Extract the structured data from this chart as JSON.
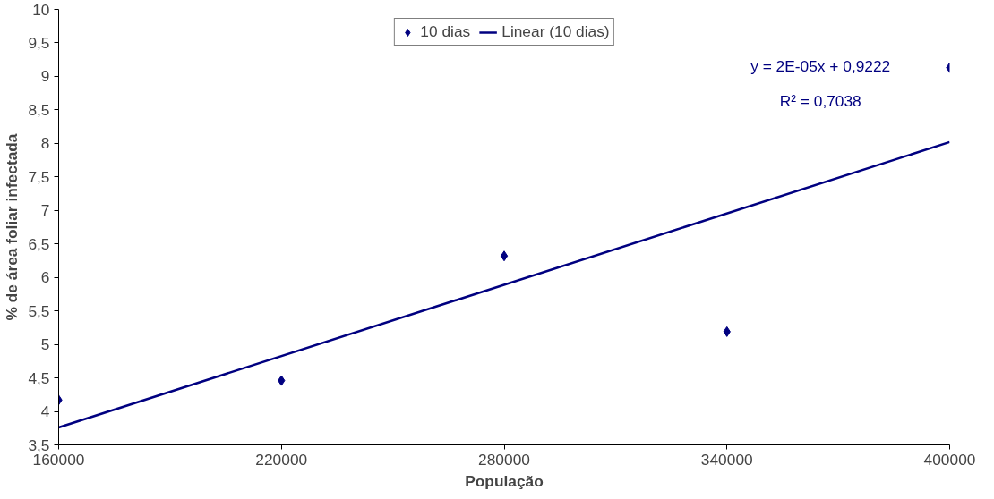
{
  "chart_data": {
    "type": "scatter",
    "xlabel": "População",
    "ylabel": "% de área foliar infectada",
    "x": [
      160000,
      220000,
      280000,
      340000,
      400000
    ],
    "series": [
      {
        "name": "10 dias",
        "color": "#000080",
        "marker": "diamond",
        "values": [
          4.17,
          4.46,
          6.32,
          5.19,
          9.13
        ]
      },
      {
        "name": "Linear (10 dias)",
        "type": "line",
        "color": "#000080",
        "x": [
          160000,
          400000
        ],
        "values": [
          3.76,
          8.02
        ]
      }
    ],
    "annotations": [
      "y = 2E-05x + 0,9222",
      "R² = 0,7038"
    ],
    "xlim": [
      160000,
      400000
    ],
    "xticks": [
      160000,
      220000,
      280000,
      340000,
      400000
    ],
    "ylim": [
      3.5,
      10
    ],
    "yticks": [
      {
        "value": 3.5,
        "label": "3,5"
      },
      4,
      {
        "value": 4.5,
        "label": "4,5"
      },
      5,
      {
        "value": 5.5,
        "label": "5,5"
      },
      6,
      {
        "value": 6.5,
        "label": "6,5"
      },
      7,
      {
        "value": 7.5,
        "label": "7,5"
      },
      8,
      {
        "value": 8.5,
        "label": "8,5"
      },
      9,
      {
        "value": 9.5,
        "label": "9,5"
      },
      10
    ],
    "grid": false,
    "legend": "top"
  }
}
